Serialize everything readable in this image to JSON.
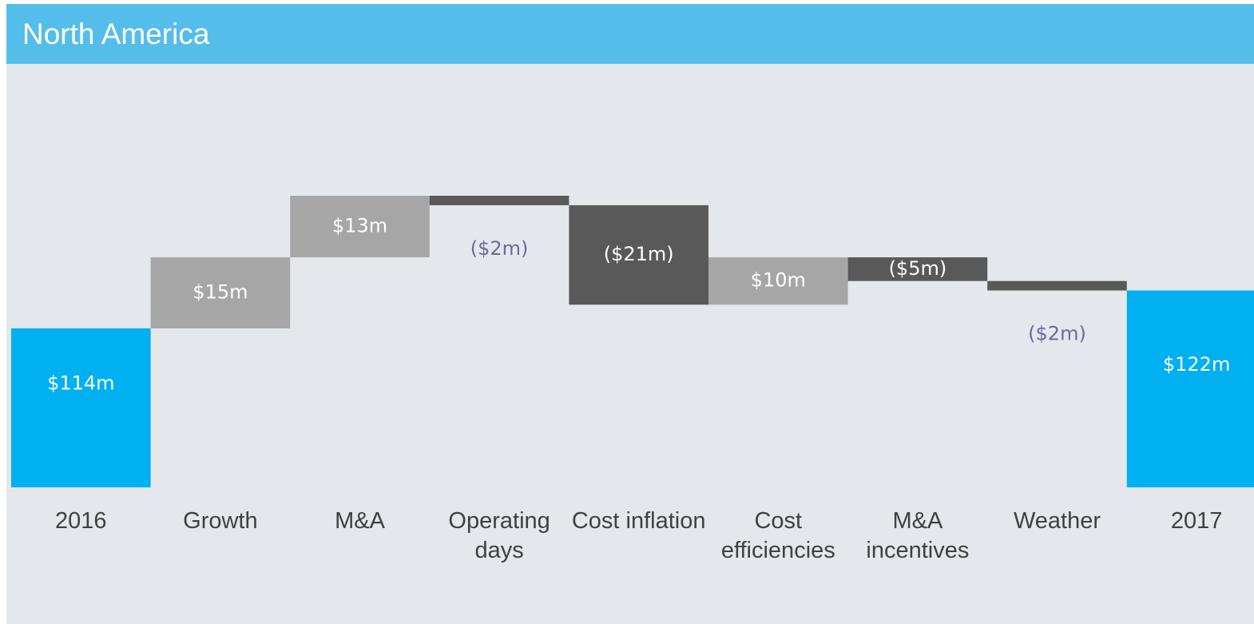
{
  "chart_data": {
    "type": "waterfall",
    "title": "North America",
    "categories": [
      "2016",
      "Growth",
      "M&A",
      "Operating days",
      "Cost inflation",
      "Cost efficiencies",
      "M&A incentives",
      "Weather",
      "2017"
    ],
    "values": [
      114,
      15,
      13,
      -2,
      -21,
      10,
      -5,
      -2,
      122
    ],
    "value_labels": [
      "$114m",
      "$15m",
      "$13m",
      "($2m)",
      "($21m)",
      "$10m",
      "($5m)",
      "($2m)",
      "$122m"
    ],
    "total_color": "#00b0f0",
    "increase_color": "#a6a6a6",
    "decrease_color": "#595959"
  }
}
